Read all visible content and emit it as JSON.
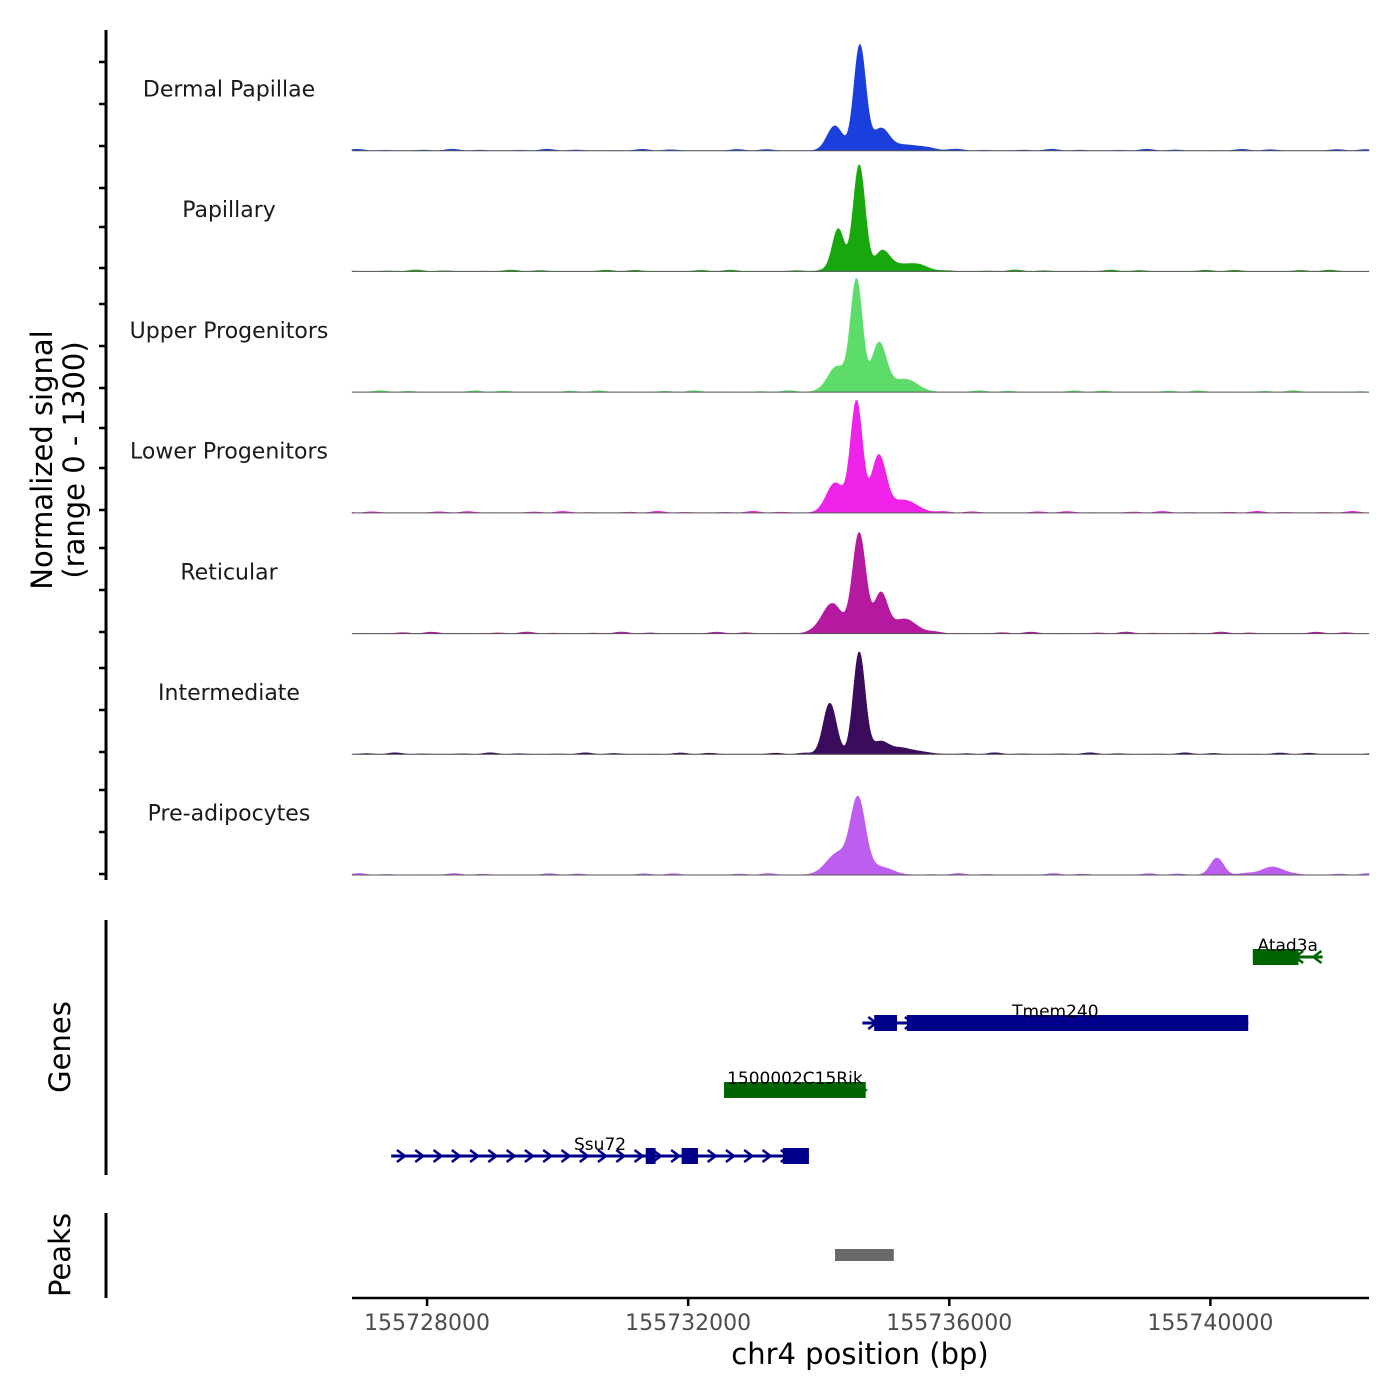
{
  "chart_data": [
    {
      "type": "area",
      "panel": "coverage",
      "ylabel": [
        "Normalized signal",
        "(range 0 - 1300)"
      ],
      "ylim": [
        0,
        1300
      ],
      "xlim": [
        155726850,
        155742430
      ],
      "tracks": [
        {
          "name": "Dermal Papillae",
          "color": "#1a3fdc",
          "peaks": [
            [
              155734250,
              280,
              120
            ],
            [
              155734630,
              1220,
              90
            ],
            [
              155734950,
              230,
              120
            ],
            [
              155735300,
              70,
              300
            ]
          ]
        },
        {
          "name": "Papillary",
          "color": "#18a80e",
          "peaks": [
            [
              155734300,
              500,
              90
            ],
            [
              155734620,
              1250,
              90
            ],
            [
              155734970,
              220,
              110
            ],
            [
              155735350,
              90,
              250
            ]
          ]
        },
        {
          "name": "Upper Progenitors",
          "color": "#5ddc6a",
          "peaks": [
            [
              155734280,
              300,
              140
            ],
            [
              155734580,
              1300,
              90
            ],
            [
              155734920,
              550,
              110
            ],
            [
              155735300,
              150,
              200
            ]
          ]
        },
        {
          "name": "Lower Progenitors",
          "color": "#ee22e8",
          "peaks": [
            [
              155734250,
              350,
              130
            ],
            [
              155734580,
              1300,
              90
            ],
            [
              155734920,
              650,
              110
            ],
            [
              155735300,
              150,
              200
            ]
          ]
        },
        {
          "name": "Reticular",
          "color": "#b4199f",
          "peaks": [
            [
              155734200,
              350,
              150
            ],
            [
              155734620,
              1180,
              100
            ],
            [
              155734950,
              450,
              100
            ],
            [
              155735300,
              160,
              200
            ]
          ]
        },
        {
          "name": "Intermediate",
          "color": "#3b0c5c",
          "peaks": [
            [
              155734170,
              600,
              100
            ],
            [
              155734620,
              1200,
              90
            ],
            [
              155734950,
              130,
              120
            ],
            [
              155735300,
              60,
              250
            ]
          ]
        },
        {
          "name": "Pre-adipocytes",
          "color": "#be5ef0",
          "peaks": [
            [
              155734300,
              250,
              180
            ],
            [
              155734600,
              820,
              110
            ],
            [
              155734900,
              100,
              200
            ],
            [
              155740100,
              200,
              100
            ],
            [
              155740950,
              80,
              200
            ]
          ]
        }
      ]
    },
    {
      "type": "gene-track",
      "ylabel": "Genes",
      "genes": [
        {
          "name": "Atad3a",
          "strand": "-",
          "color": "#006400",
          "start": 155740650,
          "end": 155741720,
          "exons": [
            [
              155740650,
              155741350
            ]
          ],
          "row": 0
        },
        {
          "name": "Tmem240",
          "strand": "+",
          "color": "#00008b",
          "start": 155734670,
          "end": 155740580,
          "exons": [
            [
              155734850,
              155735200
            ],
            [
              155735350,
              155740580
            ]
          ],
          "row": 1
        },
        {
          "name": "1500002C15Rik",
          "strand": "+",
          "color": "#006400",
          "start": 155732550,
          "end": 155734720,
          "exons": [
            [
              155732550,
              155734720
            ]
          ],
          "row": 2
        },
        {
          "name": "Ssu72",
          "strand": "+",
          "color": "#00008b",
          "start": 155727450,
          "end": 155733850,
          "exons": [
            [
              155731350,
              155731500
            ],
            [
              155731900,
              155732150
            ],
            [
              155733450,
              155733850
            ]
          ],
          "row": 3
        }
      ]
    },
    {
      "type": "peak-track",
      "ylabel": "Peaks",
      "color": "#696969",
      "peaks": [
        [
          155734250,
          155735150
        ]
      ]
    }
  ],
  "xaxis": {
    "label": "chr4 position (bp)",
    "ticks": [
      155728000,
      155732000,
      155736000,
      155740000
    ],
    "tick_labels": [
      "155728000",
      "155732000",
      "155736000",
      "155740000"
    ]
  }
}
